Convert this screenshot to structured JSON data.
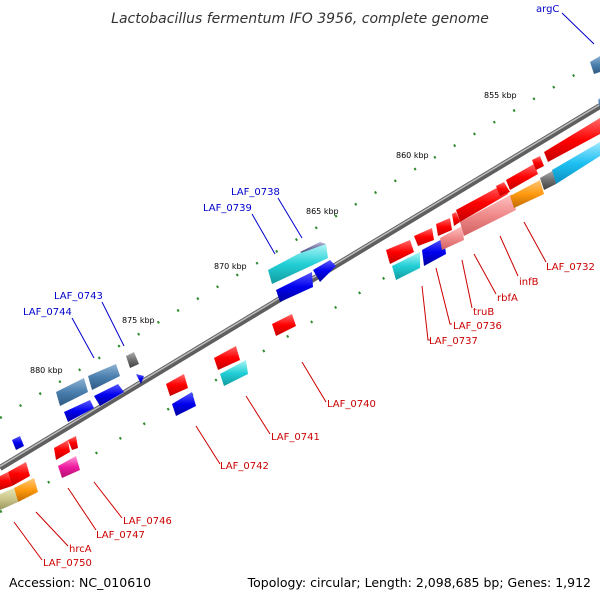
{
  "title": "Lactobacillus fermentum IFO 3956, complete genome",
  "footer": {
    "accession": "Accession: NC_010610",
    "summary": "Topology: circular; Length: 2,098,685 bp; Genes: 1,912"
  },
  "kbp_labels": [
    "855 kbp",
    "860 kbp",
    "865 kbp",
    "870 kbp",
    "875 kbp",
    "880 kbp"
  ],
  "gene_labels": {
    "argC": "argC",
    "LAF_0738": "LAF_0738",
    "LAF_0739": "LAF_0739",
    "LAF_0743": "LAF_0743",
    "LAF_0744": "LAF_0744",
    "LAF_0732": "LAF_0732",
    "infB": "infB",
    "rbfA": "rbfA",
    "truB": "truB",
    "LAF_0736": "LAF_0736",
    "LAF_0737": "LAF_0737",
    "LAF_0740": "LAF_0740",
    "LAF_0741": "LAF_0741",
    "LAF_0742": "LAF_0742",
    "LAF_0746": "LAF_0746",
    "LAF_0747": "LAF_0747",
    "hrcA": "hrcA",
    "LAF_0750": "LAF_0750"
  },
  "colors": {
    "forward_label": "#0000cc",
    "reverse_label": "#cc0000",
    "backbone": "#7a7a7a",
    "tick": "#2e8b2e"
  }
}
